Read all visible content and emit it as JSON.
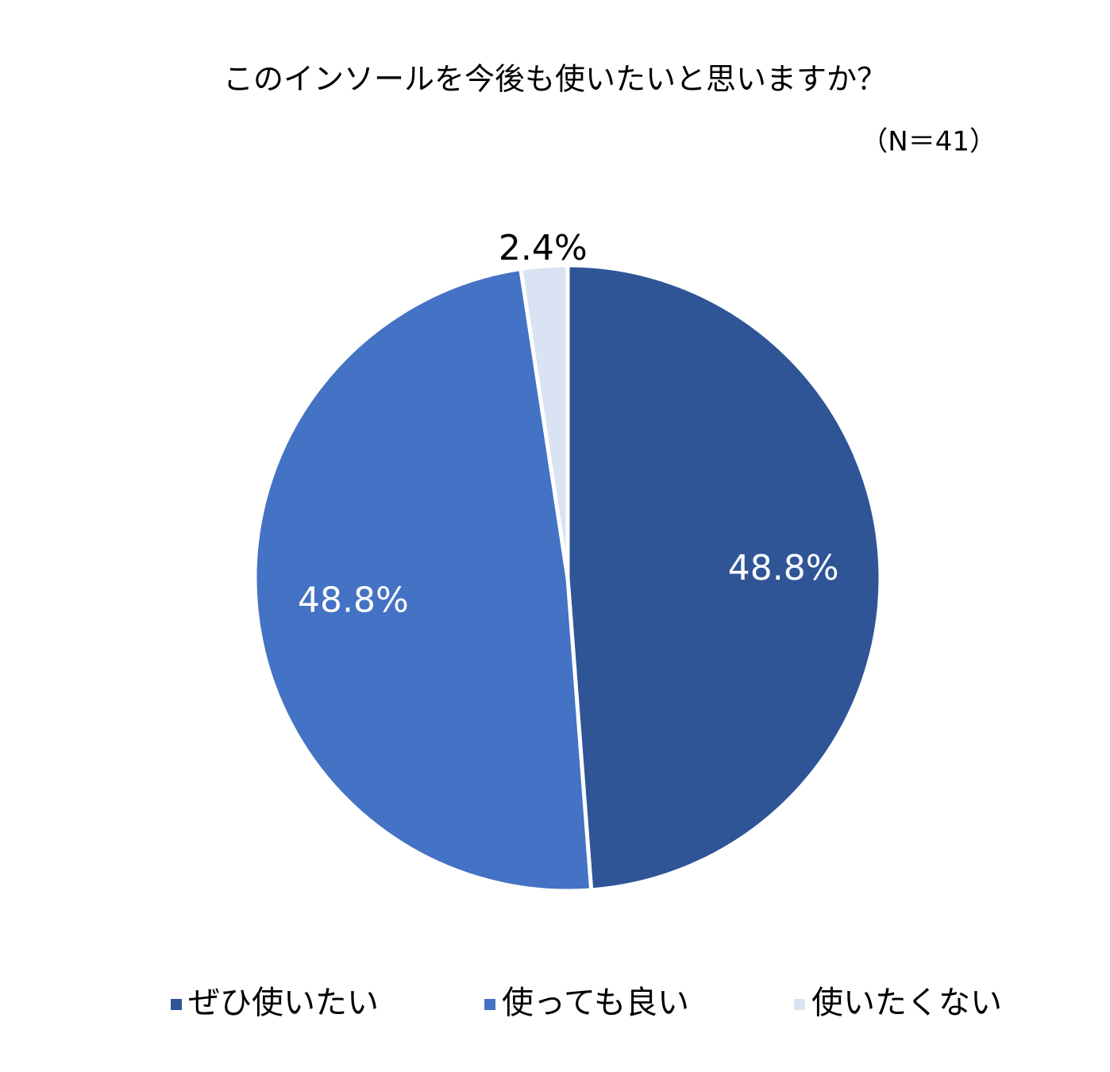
{
  "chart_data": {
    "type": "pie",
    "title": "このインソールを今後も使いたいと思いますか？",
    "subtitle": "（N＝41）",
    "categories": [
      "ぜひ使いたい",
      "使っても良い",
      "使いたくない"
    ],
    "values": [
      48.8,
      48.8,
      2.4
    ],
    "value_labels": [
      "48.8%",
      "48.8%",
      "2.4%"
    ],
    "colors": [
      "#2f5597",
      "#4472c4",
      "#dae3f3"
    ],
    "legend": "bottom"
  }
}
